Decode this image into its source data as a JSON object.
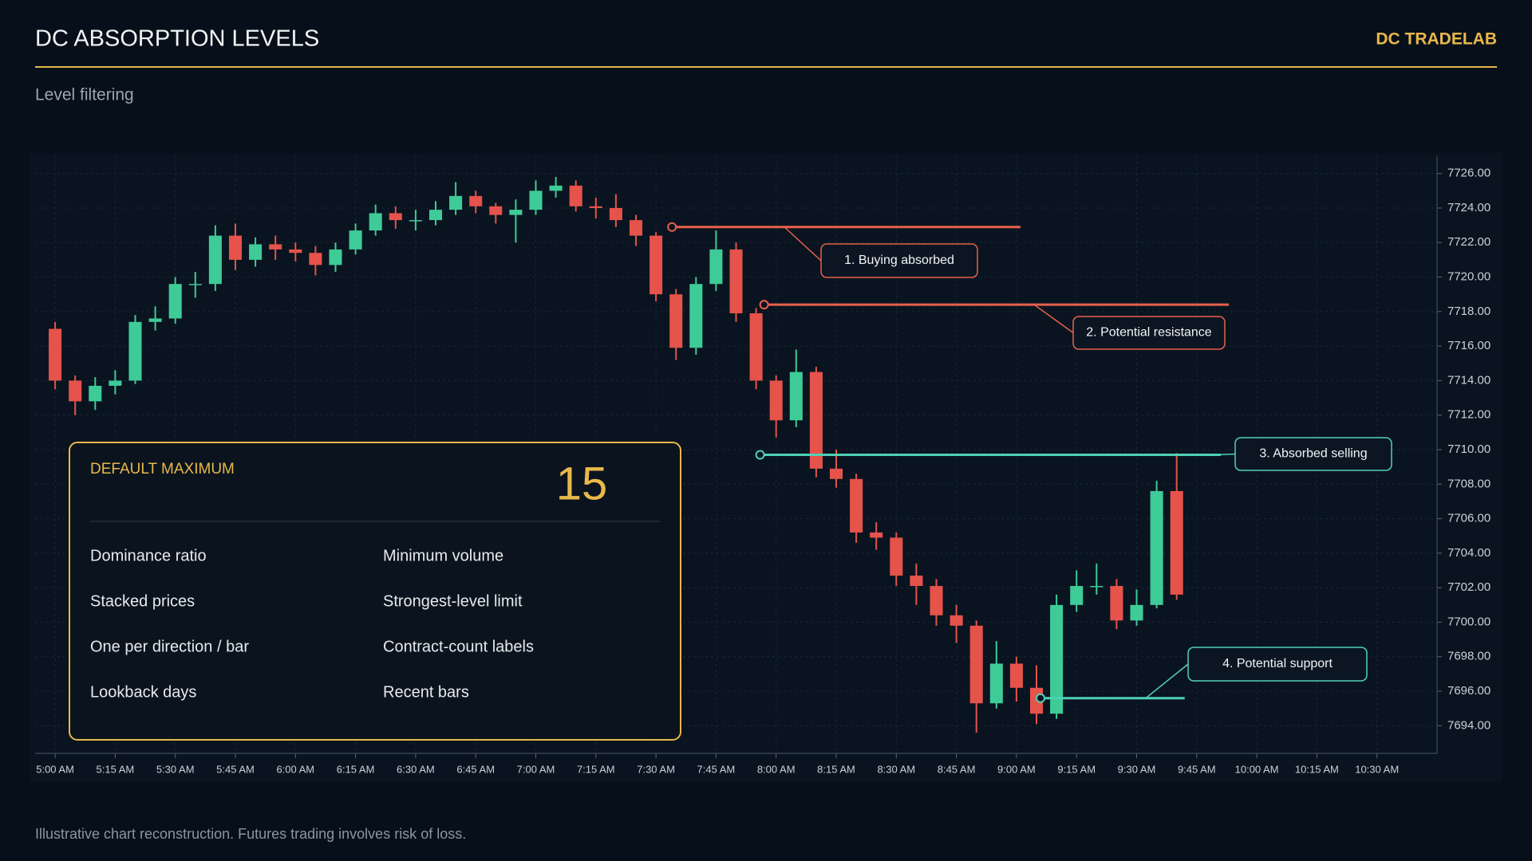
{
  "header": {
    "title": "DC ABSORPTION LEVELS",
    "brand": "DC TRADELAB",
    "subtitle": "Level filtering"
  },
  "chart_data": {
    "type": "candlestick",
    "x": [
      "05:00",
      "05:05",
      "05:10",
      "05:15",
      "05:20",
      "05:25",
      "05:30",
      "05:35",
      "05:40",
      "05:45",
      "05:50",
      "05:55",
      "06:00",
      "06:05",
      "06:10",
      "06:15",
      "06:20",
      "06:25",
      "06:30",
      "06:35",
      "06:40",
      "06:45",
      "06:50",
      "06:55",
      "07:00",
      "07:05",
      "07:10",
      "07:15",
      "07:20",
      "07:25",
      "07:30",
      "07:35",
      "07:40",
      "07:45",
      "07:50",
      "07:55",
      "08:00",
      "08:05",
      "08:10",
      "08:15",
      "08:20",
      "08:25",
      "08:30",
      "08:35",
      "08:40",
      "08:45",
      "08:50",
      "08:55",
      "09:00",
      "09:05",
      "09:10",
      "09:15",
      "09:20",
      "09:25",
      "09:30",
      "09:35",
      "09:40"
    ],
    "open": [
      7717.0,
      7714.0,
      7712.8,
      7713.7,
      7714.0,
      7717.4,
      7717.6,
      7719.6,
      7719.6,
      7722.4,
      7721.0,
      7721.9,
      7721.6,
      7721.4,
      7720.7,
      7721.6,
      7722.7,
      7723.7,
      7723.3,
      7723.3,
      7723.9,
      7724.7,
      7724.1,
      7723.6,
      7723.9,
      7725.0,
      7725.3,
      7724.1,
      7724.0,
      7723.3,
      7722.4,
      7719.0,
      7715.9,
      7719.6,
      7721.6,
      7717.9,
      7714.0,
      7711.7,
      7714.5,
      7708.9,
      7708.3,
      7705.2,
      7704.9,
      7702.7,
      7702.1,
      7700.4,
      7699.8,
      7695.3,
      7697.6,
      7696.2,
      7694.7,
      7701.0,
      7702.1,
      7702.1,
      7700.1,
      7701.0,
      7707.6
    ],
    "high": [
      7717.4,
      7714.3,
      7714.2,
      7714.6,
      7717.8,
      7718.3,
      7720.0,
      7720.3,
      7723.0,
      7723.1,
      7722.3,
      7722.4,
      7722.0,
      7721.8,
      7722.0,
      7723.1,
      7724.2,
      7724.1,
      7723.9,
      7724.4,
      7725.5,
      7725.0,
      7724.3,
      7724.5,
      7725.6,
      7725.8,
      7725.6,
      7724.6,
      7724.8,
      7723.6,
      7722.6,
      7719.3,
      7720.0,
      7722.7,
      7722.0,
      7718.2,
      7714.3,
      7715.8,
      7714.8,
      7710.0,
      7708.6,
      7705.8,
      7705.2,
      7703.4,
      7702.5,
      7701.0,
      7700.1,
      7698.9,
      7698.0,
      7697.5,
      7701.6,
      7703.0,
      7703.4,
      7702.5,
      7701.9,
      7708.2,
      7709.8
    ],
    "low": [
      7713.5,
      7712.0,
      7712.3,
      7713.2,
      7713.8,
      7716.9,
      7717.3,
      7718.8,
      7719.2,
      7720.4,
      7720.6,
      7721.0,
      7720.9,
      7720.1,
      7720.3,
      7721.3,
      7722.4,
      7722.8,
      7722.7,
      7723.0,
      7723.6,
      7723.7,
      7723.1,
      7722.0,
      7723.6,
      7724.6,
      7723.8,
      7723.4,
      7722.9,
      7721.8,
      7718.6,
      7715.2,
      7715.5,
      7719.2,
      7717.4,
      7713.5,
      7710.7,
      7711.3,
      7708.4,
      7707.8,
      7704.6,
      7704.2,
      7702.1,
      7701.0,
      7699.8,
      7698.8,
      7693.6,
      7695.0,
      7695.4,
      7694.1,
      7694.4,
      7700.6,
      7701.6,
      7699.6,
      7699.8,
      7700.8,
      7701.3
    ],
    "close": [
      7714.0,
      7712.8,
      7713.7,
      7714.0,
      7717.4,
      7717.6,
      7719.6,
      7719.6,
      7722.4,
      7721.0,
      7721.9,
      7721.6,
      7721.4,
      7720.7,
      7721.6,
      7722.7,
      7723.7,
      7723.3,
      7723.3,
      7723.9,
      7724.7,
      7724.1,
      7723.6,
      7723.9,
      7725.0,
      7725.3,
      7724.1,
      7724.0,
      7723.3,
      7722.4,
      7719.0,
      7715.9,
      7719.6,
      7721.6,
      7717.9,
      7714.0,
      7711.7,
      7714.5,
      7708.9,
      7708.3,
      7705.2,
      7704.9,
      7702.7,
      7702.1,
      7700.4,
      7699.8,
      7695.3,
      7697.6,
      7696.2,
      7694.7,
      7701.0,
      7702.1,
      7702.1,
      7700.1,
      7701.0,
      7707.6,
      7701.6
    ],
    "up_color": "#3ecb97",
    "down_color": "#e5534b",
    "xlim": [
      "04:55",
      "10:45"
    ],
    "xticks": [
      {
        "value": "05:00",
        "label": "5:00 AM"
      },
      {
        "value": "05:15",
        "label": "5:15 AM"
      },
      {
        "value": "05:30",
        "label": "5:30 AM"
      },
      {
        "value": "05:45",
        "label": "5:45 AM"
      },
      {
        "value": "06:00",
        "label": "6:00 AM"
      },
      {
        "value": "06:15",
        "label": "6:15 AM"
      },
      {
        "value": "06:30",
        "label": "6:30 AM"
      },
      {
        "value": "06:45",
        "label": "6:45 AM"
      },
      {
        "value": "07:00",
        "label": "7:00 AM"
      },
      {
        "value": "07:15",
        "label": "7:15 AM"
      },
      {
        "value": "07:30",
        "label": "7:30 AM"
      },
      {
        "value": "07:45",
        "label": "7:45 AM"
      },
      {
        "value": "08:00",
        "label": "8:00 AM"
      },
      {
        "value": "08:15",
        "label": "8:15 AM"
      },
      {
        "value": "08:30",
        "label": "8:30 AM"
      },
      {
        "value": "08:45",
        "label": "8:45 AM"
      },
      {
        "value": "09:00",
        "label": "9:00 AM"
      },
      {
        "value": "09:15",
        "label": "9:15 AM"
      },
      {
        "value": "09:30",
        "label": "9:30 AM"
      },
      {
        "value": "09:45",
        "label": "9:45 AM"
      },
      {
        "value": "10:00",
        "label": "10:00 AM"
      },
      {
        "value": "10:15",
        "label": "10:15 AM"
      },
      {
        "value": "10:30",
        "label": "10:30 AM"
      }
    ],
    "ylim": [
      7692.4,
      7727
    ],
    "yticks": [
      {
        "value": 7694,
        "label": "7694.00"
      },
      {
        "value": 7696,
        "label": "7696.00"
      },
      {
        "value": 7698,
        "label": "7698.00"
      },
      {
        "value": 7700,
        "label": "7700.00"
      },
      {
        "value": 7702,
        "label": "7702.00"
      },
      {
        "value": 7704,
        "label": "7704.00"
      },
      {
        "value": 7706,
        "label": "7706.00"
      },
      {
        "value": 7708,
        "label": "7708.00"
      },
      {
        "value": 7710,
        "label": "7710.00"
      },
      {
        "value": 7712,
        "label": "7712.00"
      },
      {
        "value": 7714,
        "label": "7714.00"
      },
      {
        "value": 7716,
        "label": "7716.00"
      },
      {
        "value": 7718,
        "label": "7718.00"
      },
      {
        "value": 7720,
        "label": "7720.00"
      },
      {
        "value": 7722,
        "label": "7722.00"
      },
      {
        "value": 7724,
        "label": "7724.00"
      },
      {
        "value": 7726,
        "label": "7726.00"
      }
    ],
    "grid": true,
    "levels": [
      {
        "label": "1. Buying absorbed",
        "price": 7722.9,
        "start": "07:34",
        "end": "09:01",
        "color": "#e8604c"
      },
      {
        "label": "2. Potential resistance",
        "price": 7718.4,
        "start": "07:57",
        "end": "09:53",
        "color": "#e8604c"
      },
      {
        "label": "3. Absorbed selling",
        "price": 7709.7,
        "start": "07:56",
        "end": "09:51",
        "color": "#4fd1b5"
      },
      {
        "label": "4. Potential support",
        "price": 7695.6,
        "start": "09:06",
        "end": "09:42",
        "color": "#4fd1b5"
      }
    ]
  },
  "card": {
    "title": "DEFAULT MAXIMUM",
    "value": 15,
    "items": [
      "Dominance ratio",
      "Minimum volume",
      "Stacked prices",
      "Strongest-level limit",
      "One per direction / bar",
      "Contract-count labels",
      "Lookback days",
      "Recent bars"
    ]
  },
  "footer": "Illustrative chart reconstruction. Futures trading involves risk of loss."
}
